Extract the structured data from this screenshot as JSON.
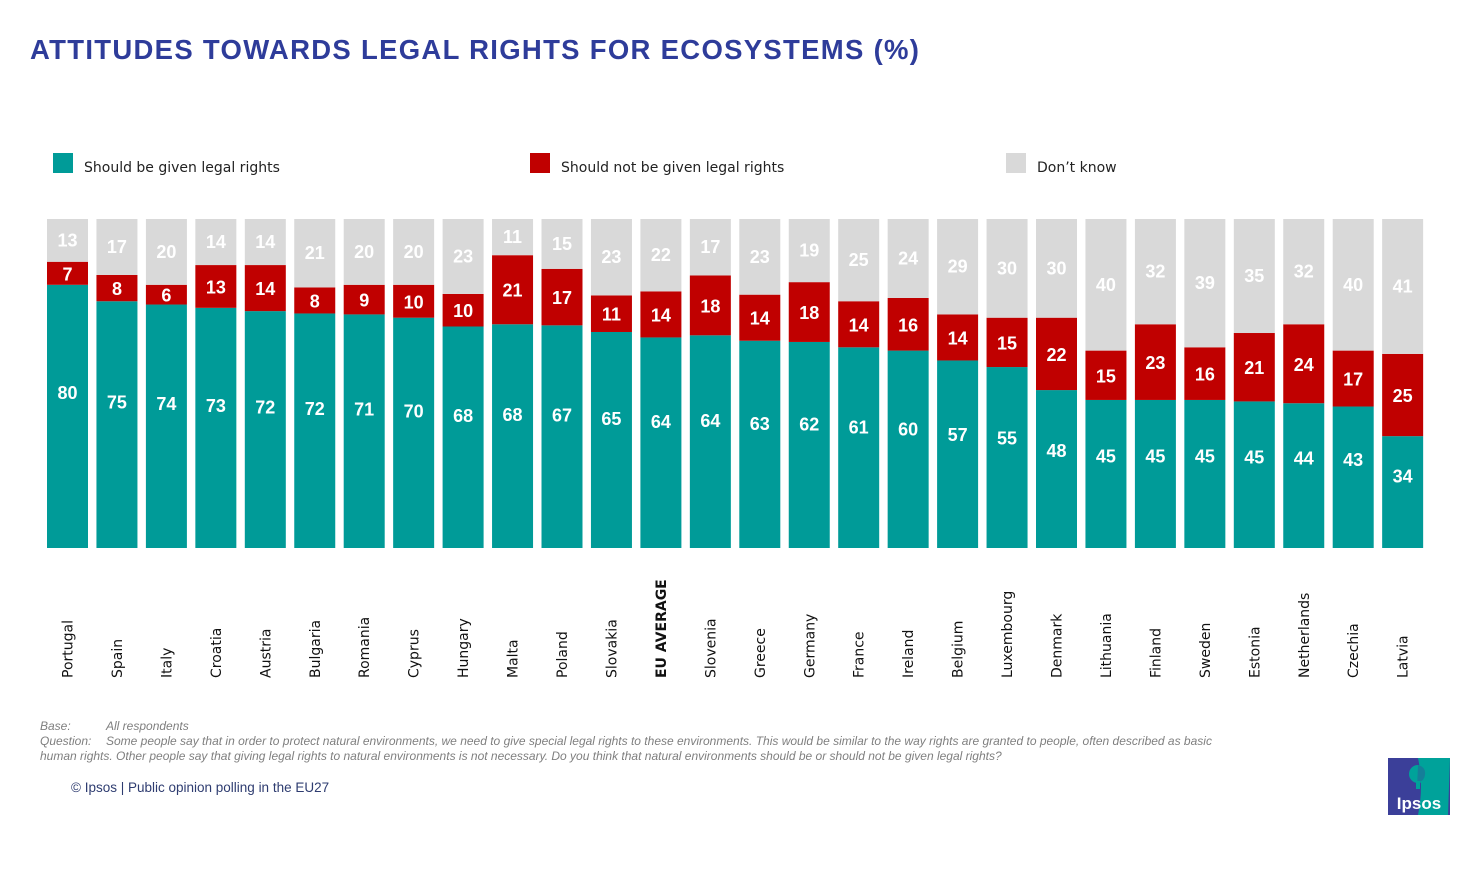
{
  "page": {
    "title": "ATTITUDES TOWARDS LEGAL RIGHTS FOR ECOSYSTEMS (%)"
  },
  "legend": [
    {
      "label": "Should be given legal rights",
      "color": "#009B98"
    },
    {
      "label": "Should not be given legal rights",
      "color": "#C00000"
    },
    {
      "label": "Don’t know",
      "color": "#D9D9D9"
    }
  ],
  "chart_data": {
    "type": "bar",
    "stacked": true,
    "orientation": "vertical",
    "title": "ATTITUDES TOWARDS LEGAL RIGHTS FOR ECOSYSTEMS (%)",
    "xlabel": "",
    "ylabel": "",
    "ylim": [
      0,
      100
    ],
    "grid": false,
    "legend_position": "top",
    "categories": [
      "Portugal",
      "Spain",
      "Italy",
      "Croatia",
      "Austria",
      "Bulgaria",
      "Romania",
      "Cyprus",
      "Hungary",
      "Malta",
      "Poland",
      "Slovakia",
      "EU AVERAGE",
      "Slovenia",
      "Greece",
      "Germany",
      "France",
      "Ireland",
      "Belgium",
      "Luxembourg",
      "Denmark",
      "Lithuania",
      "Finland",
      "Sweden",
      "Estonia",
      "Netherlands",
      "Czechia",
      "Latvia"
    ],
    "highlight_category": "EU AVERAGE",
    "series": [
      {
        "name": "Should be given legal rights",
        "color": "#009B98",
        "values": [
          80,
          75,
          74,
          73,
          72,
          72,
          71,
          70,
          68,
          68,
          67,
          65,
          64,
          64,
          63,
          62,
          61,
          60,
          57,
          55,
          48,
          45,
          45,
          45,
          45,
          44,
          43,
          34
        ]
      },
      {
        "name": "Should not be given legal rights",
        "color": "#C00000",
        "values": [
          7,
          8,
          6,
          13,
          14,
          8,
          9,
          10,
          10,
          21,
          17,
          11,
          14,
          18,
          14,
          18,
          14,
          16,
          14,
          15,
          22,
          15,
          23,
          16,
          21,
          24,
          17,
          25
        ]
      },
      {
        "name": "Don’t know",
        "color": "#D9D9D9",
        "values": [
          13,
          17,
          20,
          14,
          14,
          21,
          20,
          20,
          23,
          11,
          15,
          23,
          22,
          17,
          23,
          19,
          25,
          24,
          29,
          30,
          30,
          40,
          32,
          39,
          35,
          32,
          40,
          41
        ]
      }
    ]
  },
  "footnotes": {
    "base_label": "Base:",
    "base_text": "All respondents",
    "question_label": "Question:",
    "question_text_line1": "Some people say that in order to protect natural environments, we need to give special legal rights to these environments. This would be similar to the way rights are granted to people, often described as basic",
    "question_text_line2": "human rights. Other people say that giving legal rights to natural environments is not necessary. Do you think that natural environments should be or should not be given legal rights?"
  },
  "copyright": "© Ipsos | Public opinion polling in the EU27",
  "logo": {
    "text": "Ipsos",
    "colors": {
      "left": "#3B3F99",
      "right": "#00A29A"
    }
  }
}
